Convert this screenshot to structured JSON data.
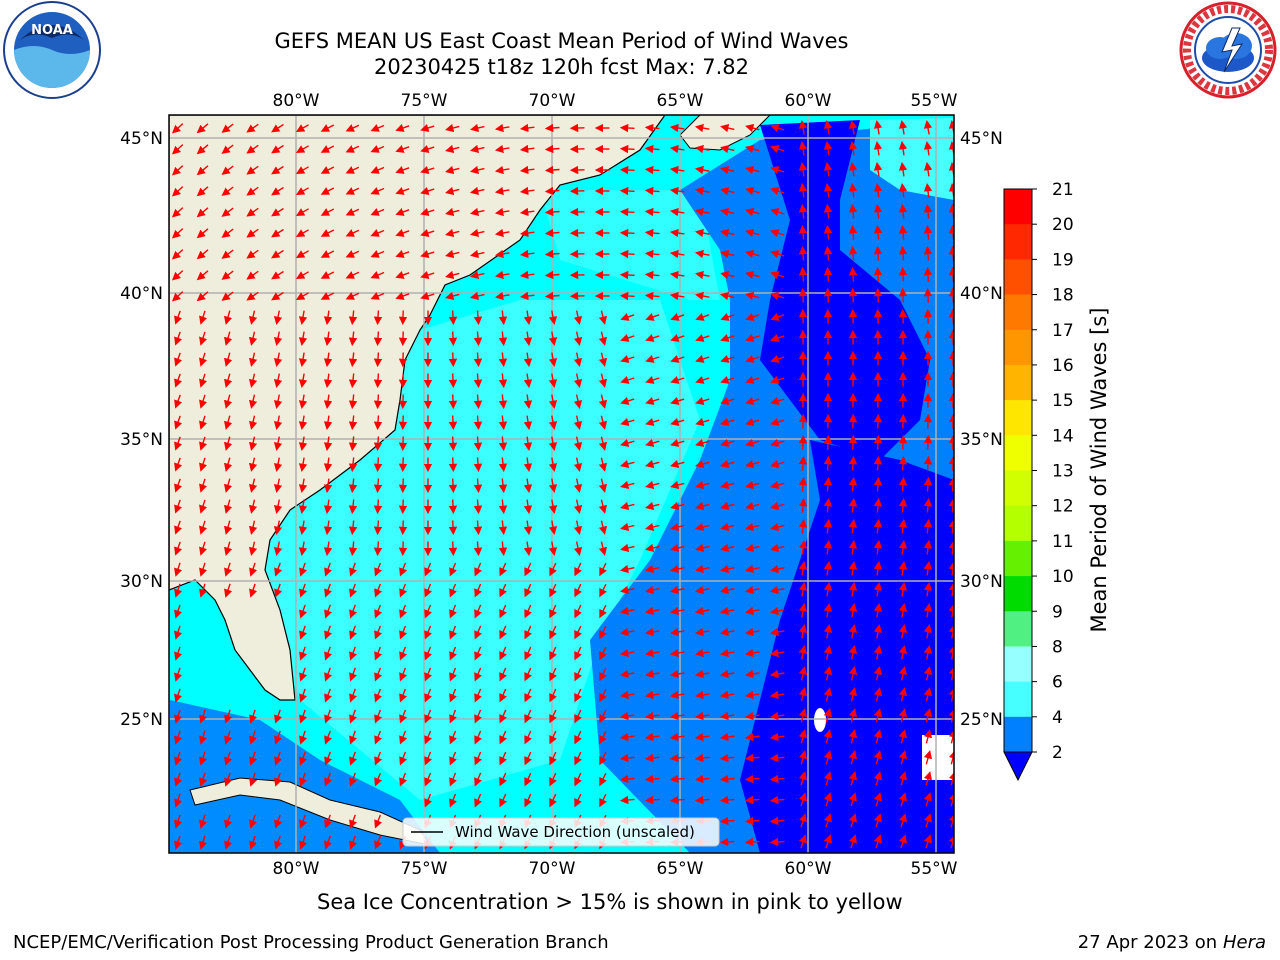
{
  "title": {
    "line1": "GEFS MEAN US East Coast Mean Period of Wind Waves",
    "line2": "20230425 t18z 120h fcst   Max: 7.82"
  },
  "map": {
    "lon_ticks": [
      "80°W",
      "75°W",
      "70°W",
      "65°W",
      "60°W",
      "55°W"
    ],
    "lat_ticks": [
      "45°N",
      "40°N",
      "35°N",
      "30°N",
      "25°N"
    ],
    "legend_label": "Wind Wave Direction (unscaled)",
    "arrow_color": "#ff0000",
    "land_color": "#efeddc"
  },
  "colorbar": {
    "label": "Mean Period of Wind Waves [s]",
    "ticks": [
      "21",
      "20",
      "19",
      "18",
      "17",
      "16",
      "15",
      "14",
      "13",
      "12",
      "11",
      "10",
      "9",
      "8",
      "6",
      "4",
      "2"
    ],
    "colors": [
      "#ff0000",
      "#ff2800",
      "#ff5000",
      "#ff7800",
      "#ff9600",
      "#ffb400",
      "#ffe600",
      "#f0ff00",
      "#d2ff00",
      "#b4ff00",
      "#64f000",
      "#00dc00",
      "#00ff32",
      "#50f082",
      "#96ffff",
      "#46ffff",
      "#00ffff",
      "#0080ff",
      "#0000ff"
    ]
  },
  "notes": {
    "sea_ice": "Sea Ice Concentration > 15% is shown in pink to yellow",
    "producer": "NCEP/EMC/Verification Post Processing Product Generation Branch",
    "date": "27 Apr 2023 on ",
    "host": "Hera"
  },
  "logos": {
    "noaa": "NOAA",
    "nws": "NATIONAL WEATHER SERVICE"
  }
}
